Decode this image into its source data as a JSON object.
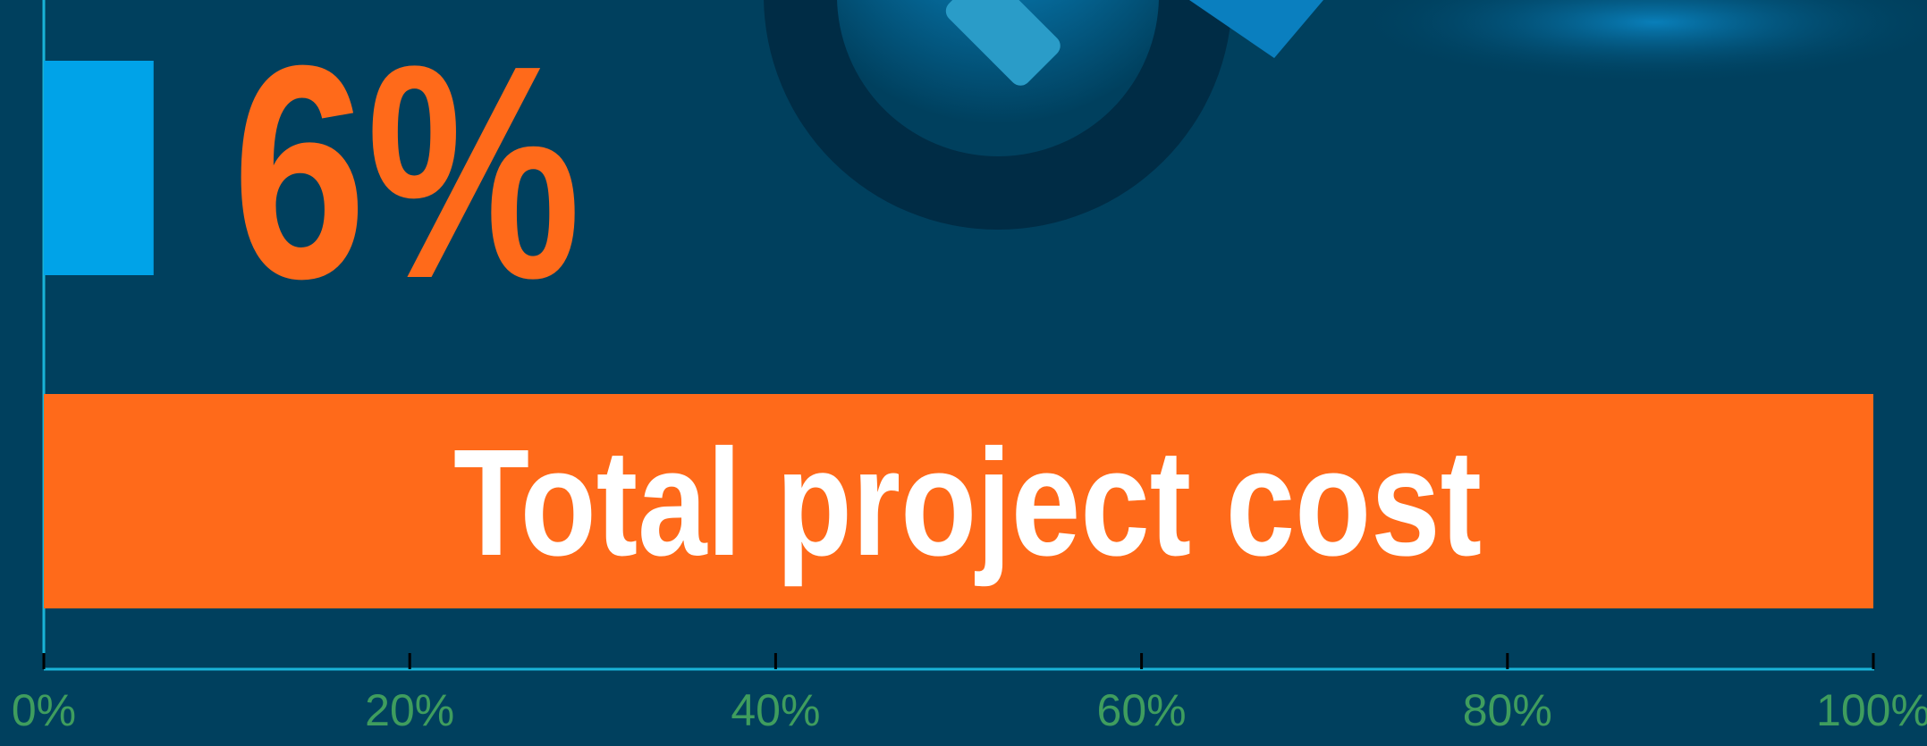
{
  "chart_data": {
    "type": "bar",
    "orientation": "horizontal",
    "categories": [
      null,
      "Total project cost"
    ],
    "values": [
      6,
      100
    ],
    "value_labels": [
      "6%",
      null
    ],
    "colors": [
      "#00a3e8",
      "#ff6a1a"
    ],
    "xlim": [
      0,
      100
    ],
    "xticks": [
      {
        "value": 0,
        "label": "0%"
      },
      {
        "value": 20,
        "label": "20%"
      },
      {
        "value": 40,
        "label": "40%"
      },
      {
        "value": 60,
        "label": "60%"
      },
      {
        "value": 80,
        "label": "80%"
      },
      {
        "value": 100,
        "label": "100%"
      }
    ]
  }
}
